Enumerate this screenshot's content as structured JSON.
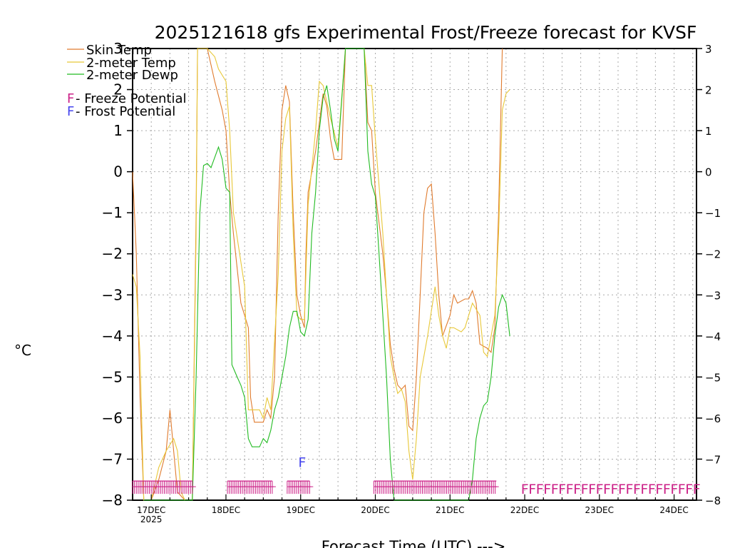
{
  "chart_data": {
    "type": "line",
    "title": "2025121618 gfs Experimental Frost/Freeze forecast for KVSF",
    "ylabel": "°C",
    "xlabel": "Forecast Time (UTC) --->",
    "ylim": [
      -8,
      3
    ],
    "xlim": [
      16.75,
      24.3
    ],
    "y_ticks": [
      3,
      2,
      1,
      0,
      -1,
      -2,
      -3,
      -4,
      -5,
      -6,
      -7,
      -8
    ],
    "y_tick_labels": [
      "3",
      "2",
      "1",
      "0",
      "−1",
      "−2",
      "−3",
      "−4",
      "−5",
      "−6",
      "−7",
      "−8"
    ],
    "x_ticks": [
      {
        "day": 17,
        "label": "17DEC",
        "sublabel": "2025"
      },
      {
        "day": 18,
        "label": "18DEC",
        "sublabel": ""
      },
      {
        "day": 19,
        "label": "19DEC",
        "sublabel": ""
      },
      {
        "day": 20,
        "label": "20DEC",
        "sublabel": ""
      },
      {
        "day": 21,
        "label": "21DEC",
        "sublabel": ""
      },
      {
        "day": 22,
        "label": "22DEC",
        "sublabel": ""
      },
      {
        "day": 23,
        "label": "23DEC",
        "sublabel": ""
      },
      {
        "day": 24,
        "label": "24DEC",
        "sublabel": ""
      }
    ],
    "grid": true,
    "legend": {
      "position": "top-left",
      "items": [
        {
          "label": "Skin Temp",
          "color": "#e07b2e"
        },
        {
          "label": "2-meter Temp",
          "color": "#e8c838"
        },
        {
          "label": "2-meter Dewp",
          "color": "#22bb22"
        }
      ],
      "markers": [
        {
          "symbol": "F",
          "label": " - Freeze Potential",
          "color": "#cc2288"
        },
        {
          "symbol": "F",
          "label": " - Frost Potential",
          "color": "#4444ee"
        }
      ]
    },
    "series": [
      {
        "name": "Skin Temp",
        "color": "#e07b2e",
        "points": [
          [
            16.75,
            0.0
          ],
          [
            16.8,
            -2.0
          ],
          [
            16.85,
            -5.5
          ],
          [
            16.9,
            -8.0
          ],
          [
            17.0,
            -8.0
          ],
          [
            17.1,
            -7.5
          ],
          [
            17.2,
            -6.8
          ],
          [
            17.25,
            -5.8
          ],
          [
            17.3,
            -6.8
          ],
          [
            17.35,
            -7.8
          ],
          [
            17.45,
            -8.0
          ],
          [
            17.5,
            -8.0
          ],
          [
            17.55,
            -8.0
          ],
          [
            17.6,
            -1.0
          ],
          [
            17.62,
            3.0
          ],
          [
            17.75,
            3.0
          ],
          [
            17.85,
            2.2
          ],
          [
            17.95,
            1.5
          ],
          [
            18.0,
            1.0
          ],
          [
            18.05,
            -0.5
          ],
          [
            18.1,
            -1.5
          ],
          [
            18.2,
            -3.2
          ],
          [
            18.3,
            -3.8
          ],
          [
            18.33,
            -5.5
          ],
          [
            18.38,
            -6.1
          ],
          [
            18.5,
            -6.1
          ],
          [
            18.55,
            -5.8
          ],
          [
            18.6,
            -6.0
          ],
          [
            18.65,
            -5.0
          ],
          [
            18.7,
            -1.0
          ],
          [
            18.75,
            1.5
          ],
          [
            18.8,
            2.1
          ],
          [
            18.85,
            1.7
          ],
          [
            18.9,
            -1.0
          ],
          [
            18.95,
            -3.0
          ],
          [
            19.0,
            -3.5
          ],
          [
            19.05,
            -3.8
          ],
          [
            19.07,
            -2.0
          ],
          [
            19.1,
            -0.5
          ],
          [
            19.2,
            0.5
          ],
          [
            19.3,
            1.9
          ],
          [
            19.35,
            1.6
          ],
          [
            19.4,
            0.8
          ],
          [
            19.45,
            0.3
          ],
          [
            19.55,
            0.3
          ],
          [
            19.6,
            3.0
          ],
          [
            19.85,
            3.0
          ],
          [
            19.9,
            1.2
          ],
          [
            19.95,
            1.0
          ],
          [
            20.0,
            -0.5
          ],
          [
            20.1,
            -2.0
          ],
          [
            20.15,
            -3.0
          ],
          [
            20.2,
            -4.2
          ],
          [
            20.25,
            -4.8
          ],
          [
            20.3,
            -5.2
          ],
          [
            20.35,
            -5.3
          ],
          [
            20.4,
            -5.2
          ],
          [
            20.45,
            -6.2
          ],
          [
            20.5,
            -6.3
          ],
          [
            20.55,
            -5.0
          ],
          [
            20.6,
            -3.0
          ],
          [
            20.65,
            -1.0
          ],
          [
            20.7,
            -0.4
          ],
          [
            20.75,
            -0.3
          ],
          [
            20.8,
            -1.5
          ],
          [
            20.85,
            -3.0
          ],
          [
            20.9,
            -4.0
          ],
          [
            21.0,
            -3.5
          ],
          [
            21.05,
            -3.0
          ],
          [
            21.1,
            -3.2
          ],
          [
            21.2,
            -3.1
          ],
          [
            21.25,
            -3.1
          ],
          [
            21.3,
            -2.9
          ],
          [
            21.35,
            -3.2
          ],
          [
            21.4,
            -4.2
          ],
          [
            21.5,
            -4.3
          ],
          [
            21.55,
            -4.4
          ],
          [
            21.6,
            -3.8
          ],
          [
            21.65,
            -1.0
          ],
          [
            21.7,
            3.0
          ]
        ]
      },
      {
        "name": "2-meter Temp",
        "color": "#e8c838",
        "points": [
          [
            16.75,
            -2.5
          ],
          [
            16.8,
            -2.8
          ],
          [
            16.85,
            -4.5
          ],
          [
            16.9,
            -8.0
          ],
          [
            17.0,
            -8.0
          ],
          [
            17.05,
            -7.6
          ],
          [
            17.1,
            -7.2
          ],
          [
            17.2,
            -6.8
          ],
          [
            17.3,
            -6.5
          ],
          [
            17.35,
            -6.8
          ],
          [
            17.4,
            -7.8
          ],
          [
            17.45,
            -8.0
          ],
          [
            17.55,
            -8.0
          ],
          [
            17.6,
            -1.5
          ],
          [
            17.62,
            3.0
          ],
          [
            17.75,
            3.0
          ],
          [
            17.85,
            2.8
          ],
          [
            17.9,
            2.5
          ],
          [
            18.0,
            2.2
          ],
          [
            18.05,
            1.0
          ],
          [
            18.1,
            -1.0
          ],
          [
            18.2,
            -2.2
          ],
          [
            18.25,
            -2.8
          ],
          [
            18.3,
            -5.8
          ],
          [
            18.35,
            -5.8
          ],
          [
            18.45,
            -5.8
          ],
          [
            18.5,
            -6.0
          ],
          [
            18.55,
            -5.5
          ],
          [
            18.6,
            -5.8
          ],
          [
            18.7,
            -2.5
          ],
          [
            18.75,
            0.5
          ],
          [
            18.8,
            1.3
          ],
          [
            18.85,
            1.6
          ],
          [
            18.9,
            -1.5
          ],
          [
            18.95,
            -3.5
          ],
          [
            19.0,
            -3.6
          ],
          [
            19.05,
            -3.6
          ],
          [
            19.07,
            -2.5
          ],
          [
            19.1,
            -0.8
          ],
          [
            19.2,
            1.0
          ],
          [
            19.25,
            2.2
          ],
          [
            19.3,
            2.1
          ],
          [
            19.4,
            1.3
          ],
          [
            19.5,
            0.6
          ],
          [
            19.6,
            3.0
          ],
          [
            19.85,
            3.0
          ],
          [
            19.9,
            2.1
          ],
          [
            19.95,
            2.1
          ],
          [
            20.0,
            0.8
          ],
          [
            20.1,
            -1.5
          ],
          [
            20.15,
            -3.0
          ],
          [
            20.2,
            -4.5
          ],
          [
            20.25,
            -5.0
          ],
          [
            20.3,
            -5.4
          ],
          [
            20.35,
            -5.3
          ],
          [
            20.4,
            -5.6
          ],
          [
            20.45,
            -6.8
          ],
          [
            20.5,
            -7.5
          ],
          [
            20.55,
            -6.5
          ],
          [
            20.6,
            -5.0
          ],
          [
            20.7,
            -4.0
          ],
          [
            20.8,
            -2.8
          ],
          [
            20.85,
            -3.5
          ],
          [
            20.9,
            -4.0
          ],
          [
            20.95,
            -4.3
          ],
          [
            21.0,
            -3.8
          ],
          [
            21.05,
            -3.8
          ],
          [
            21.15,
            -3.9
          ],
          [
            21.2,
            -3.8
          ],
          [
            21.3,
            -3.2
          ],
          [
            21.4,
            -3.5
          ],
          [
            21.45,
            -4.4
          ],
          [
            21.5,
            -4.5
          ],
          [
            21.55,
            -4.0
          ],
          [
            21.6,
            -3.5
          ],
          [
            21.65,
            -1.5
          ],
          [
            21.7,
            1.5
          ],
          [
            21.75,
            1.9
          ],
          [
            21.8,
            2.0
          ]
        ]
      },
      {
        "name": "2-meter Dewp",
        "color": "#22bb22",
        "points": [
          [
            16.9,
            -8.0
          ],
          [
            17.0,
            -8.0
          ],
          [
            17.55,
            -8.0
          ],
          [
            17.6,
            -5.0
          ],
          [
            17.65,
            -1.0
          ],
          [
            17.7,
            0.15
          ],
          [
            17.75,
            0.2
          ],
          [
            17.8,
            0.1
          ],
          [
            17.9,
            0.6
          ],
          [
            17.95,
            0.3
          ],
          [
            18.0,
            -0.4
          ],
          [
            18.05,
            -0.5
          ],
          [
            18.08,
            -4.7
          ],
          [
            18.15,
            -5.0
          ],
          [
            18.2,
            -5.2
          ],
          [
            18.25,
            -5.5
          ],
          [
            18.3,
            -6.5
          ],
          [
            18.35,
            -6.7
          ],
          [
            18.45,
            -6.7
          ],
          [
            18.5,
            -6.5
          ],
          [
            18.55,
            -6.6
          ],
          [
            18.6,
            -6.3
          ],
          [
            18.65,
            -5.8
          ],
          [
            18.7,
            -5.5
          ],
          [
            18.8,
            -4.5
          ],
          [
            18.85,
            -3.8
          ],
          [
            18.9,
            -3.4
          ],
          [
            18.95,
            -3.4
          ],
          [
            19.0,
            -3.9
          ],
          [
            19.05,
            -4.0
          ],
          [
            19.1,
            -3.6
          ],
          [
            19.15,
            -1.5
          ],
          [
            19.2,
            -0.5
          ],
          [
            19.25,
            1.0
          ],
          [
            19.3,
            1.8
          ],
          [
            19.35,
            2.1
          ],
          [
            19.4,
            1.5
          ],
          [
            19.45,
            0.8
          ],
          [
            19.5,
            0.5
          ],
          [
            19.6,
            3.0
          ],
          [
            19.85,
            3.0
          ],
          [
            19.9,
            0.5
          ],
          [
            19.95,
            -0.3
          ],
          [
            20.0,
            -0.6
          ],
          [
            20.05,
            -2.0
          ],
          [
            20.1,
            -3.5
          ],
          [
            20.15,
            -5.0
          ],
          [
            20.2,
            -7.0
          ],
          [
            20.25,
            -8.0
          ],
          [
            20.3,
            -8.0
          ],
          [
            21.25,
            -8.0
          ],
          [
            21.3,
            -7.5
          ],
          [
            21.35,
            -6.5
          ],
          [
            21.4,
            -6.0
          ],
          [
            21.45,
            -5.7
          ],
          [
            21.5,
            -5.6
          ],
          [
            21.55,
            -5.0
          ],
          [
            21.6,
            -4.0
          ],
          [
            21.65,
            -3.3
          ],
          [
            21.7,
            -3.0
          ],
          [
            21.75,
            -3.2
          ],
          [
            21.8,
            -4.0
          ]
        ]
      }
    ],
    "potential_bars": [
      {
        "type": "freeze",
        "start": 16.75,
        "end": 17.55,
        "density": "dense",
        "glyph": "F"
      },
      {
        "type": "freeze",
        "start": 18.02,
        "end": 18.62,
        "density": "dense",
        "glyph": "F"
      },
      {
        "type": "freeze",
        "start": 18.82,
        "end": 19.12,
        "density": "dense",
        "glyph": "F"
      },
      {
        "type": "freeze",
        "start": 19.98,
        "end": 21.62,
        "density": "dense",
        "glyph": "F"
      },
      {
        "type": "freeze",
        "start": 21.95,
        "end": 24.3,
        "density": "sparse",
        "glyph": "F",
        "step": 0.1
      }
    ],
    "frost_markers": [
      {
        "day": 19.02,
        "glyph": "F"
      }
    ]
  }
}
